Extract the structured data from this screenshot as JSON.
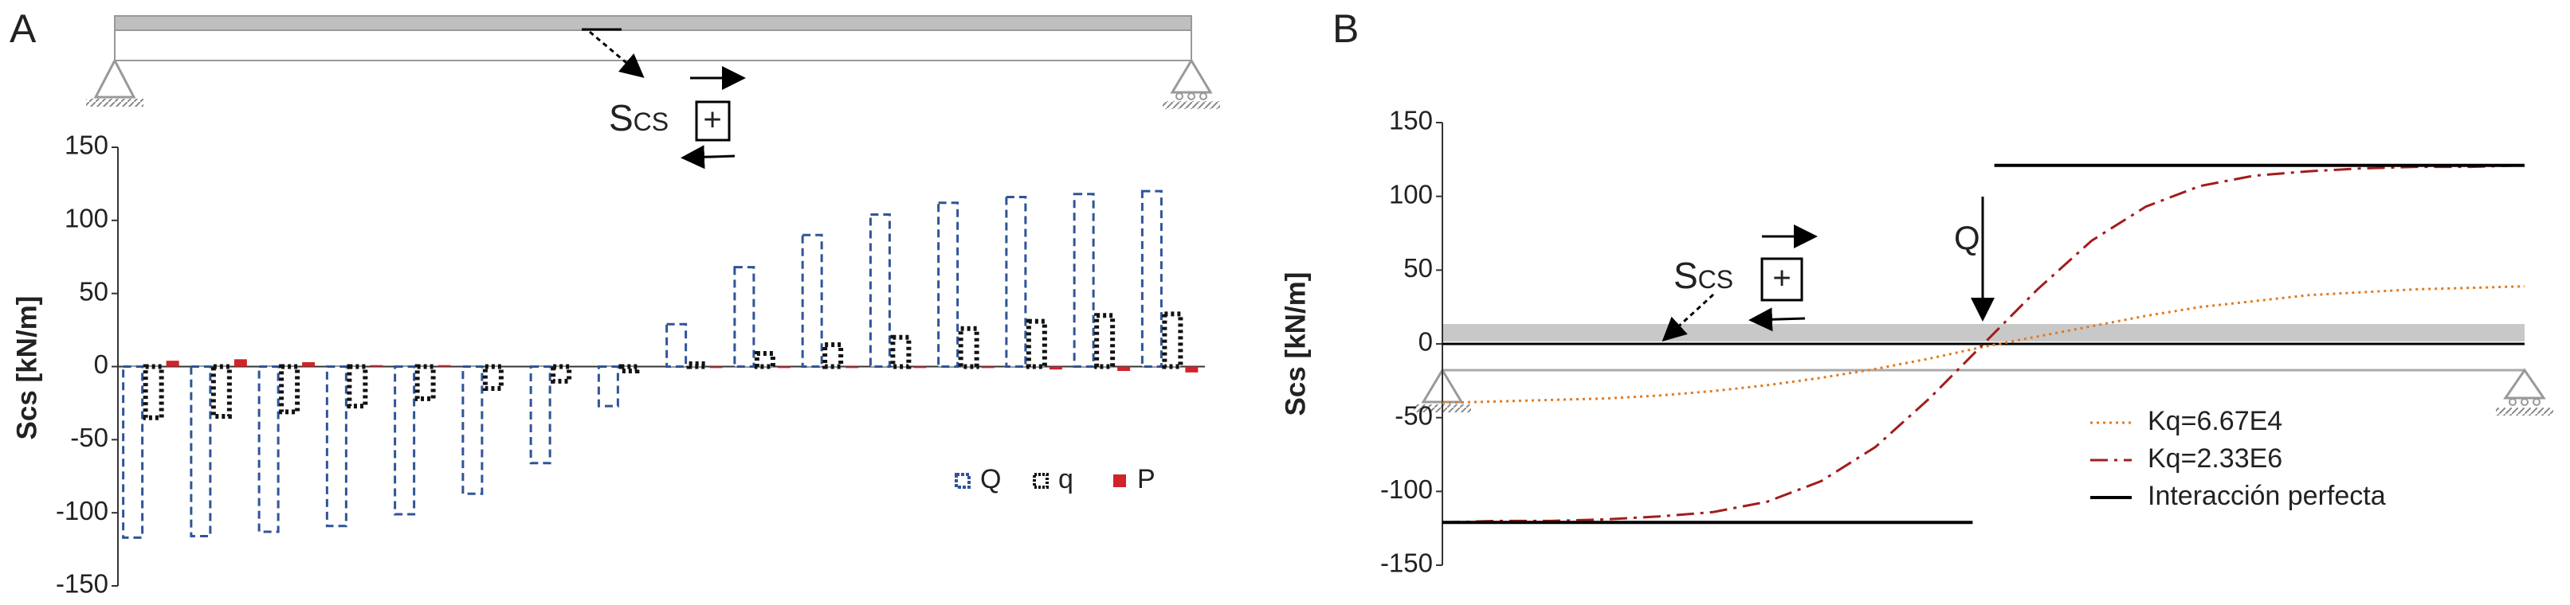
{
  "chart_data": [
    {
      "type": "bar",
      "panel": "A",
      "ylabel": "Scs [kN/m]",
      "symbol": "Scs",
      "sign": "+",
      "categories": [
        null,
        null,
        null,
        null,
        null,
        null,
        null,
        null,
        null,
        null,
        null,
        null,
        null,
        null,
        null,
        null
      ],
      "series": [
        {
          "name": "Q",
          "color": "#2f5597",
          "values": [
            -117,
            -116,
            -113,
            -109,
            -101,
            -87,
            -66,
            -27,
            29,
            68,
            90,
            104,
            112,
            116,
            118,
            120
          ]
        },
        {
          "name": "q",
          "color": "#111111",
          "values": [
            -35,
            -34,
            -31,
            -27,
            -22,
            -15,
            -10,
            -3,
            2,
            9,
            15,
            20,
            26,
            31,
            35,
            36
          ]
        },
        {
          "name": "P",
          "color": "#d0232a",
          "values": [
            4,
            5,
            3,
            1,
            1,
            0,
            0,
            0,
            -1,
            -1,
            -1,
            -1,
            -1,
            -2,
            -3,
            -4
          ]
        }
      ],
      "ylim": [
        -150,
        150
      ],
      "yticks": [
        -150,
        -100,
        -50,
        0,
        50,
        100,
        150
      ]
    },
    {
      "type": "line",
      "panel": "B",
      "ylabel": "Scs [kN/m]",
      "symbol": "Scs",
      "sign": "+",
      "load": "Q",
      "x": [
        0,
        5,
        10,
        15,
        20,
        25,
        30,
        35,
        40,
        45,
        50,
        55,
        60,
        65,
        70,
        75,
        80,
        85,
        90,
        95,
        100
      ],
      "xlim": [
        0,
        100
      ],
      "series": [
        {
          "name": "Kq=6.67E4",
          "color": "#e07b20",
          "values": [
            -40,
            -39,
            -38,
            -37,
            -35,
            -32,
            -28,
            -23,
            -17,
            -10,
            -2,
            5,
            12,
            19,
            25,
            29,
            33,
            35,
            37,
            38,
            39
          ]
        },
        {
          "name": "Kq=2.33E6",
          "color": "#a31c1c",
          "values": [
            -121,
            -120,
            -120,
            -119,
            -117,
            -114,
            -107,
            -93,
            -70,
            -37,
            0,
            37,
            70,
            93,
            107,
            114,
            117,
            119,
            120,
            120,
            121
          ]
        },
        {
          "name": "Interacción perfecta",
          "color": "#000000",
          "x": [
            0,
            49,
            50,
            51,
            100
          ],
          "values": [
            -121,
            -121,
            null,
            121,
            121
          ]
        }
      ],
      "ylim": [
        -150,
        150
      ],
      "yticks": [
        -150,
        -100,
        -50,
        0,
        50,
        100,
        150
      ]
    }
  ]
}
